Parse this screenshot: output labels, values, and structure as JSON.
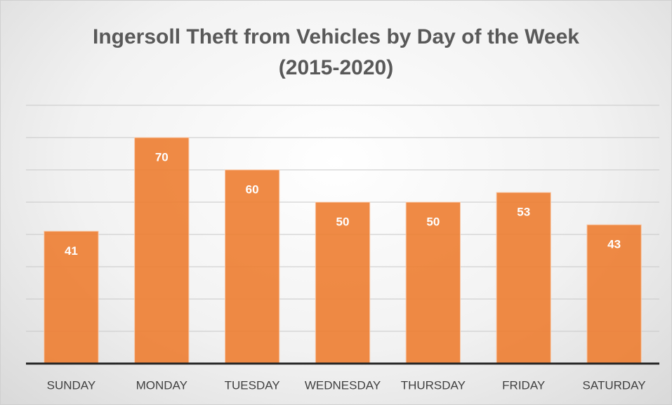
{
  "chart_data": {
    "type": "bar",
    "title": "Ingersoll Theft from Vehicles by Day of the Week\n(2015-2020)",
    "categories": [
      "SUNDAY",
      "MONDAY",
      "TUESDAY",
      "WEDNESDAY",
      "THURSDAY",
      "FRIDAY",
      "SATURDAY"
    ],
    "values": [
      41,
      70,
      60,
      50,
      50,
      53,
      43
    ],
    "color": "#ed7d31",
    "ylim": [
      0,
      80
    ],
    "yticks": [
      0,
      10,
      20,
      30,
      40,
      50,
      60,
      70,
      80
    ],
    "grid": true
  }
}
